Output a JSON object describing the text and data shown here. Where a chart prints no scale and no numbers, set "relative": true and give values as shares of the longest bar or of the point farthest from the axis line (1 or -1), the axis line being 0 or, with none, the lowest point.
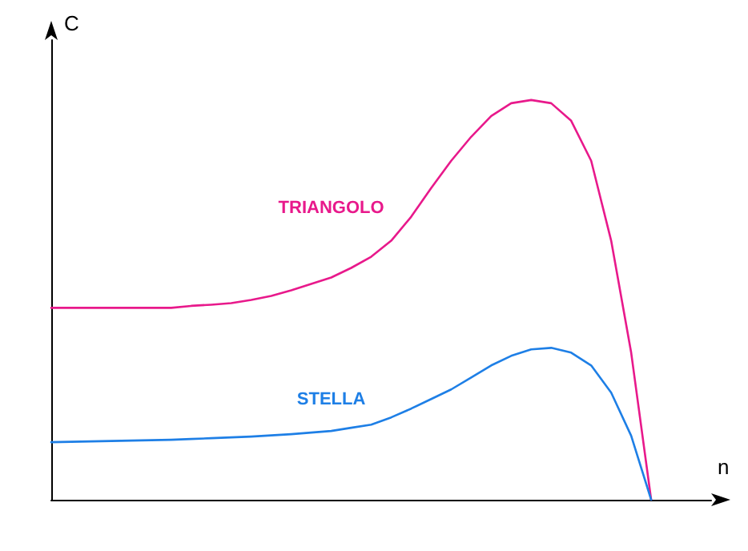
{
  "chart_data": {
    "type": "line",
    "relative": true,
    "xlabel": "n",
    "ylabel": "C",
    "grid": false,
    "legend": false,
    "marker": "none",
    "line_style": "solid",
    "categories": [
      null,
      null,
      null,
      null,
      null,
      null,
      null,
      null,
      null,
      null,
      null,
      null,
      null,
      null,
      null,
      null,
      null,
      null,
      null,
      null,
      null,
      null,
      null,
      null,
      null,
      null,
      null,
      null,
      null,
      null,
      null,
      null,
      null,
      null
    ],
    "series": [
      {
        "name": "TRIANGOLO",
        "color": "#e8198b",
        "values": [
          0.48,
          0.48,
          0.48,
          0.48,
          0.48,
          0.48,
          0.48,
          0.485,
          0.488,
          0.492,
          0.5,
          0.51,
          0.524,
          0.54,
          0.556,
          0.58,
          0.608,
          0.648,
          0.708,
          0.78,
          0.848,
          0.908,
          0.96,
          0.992,
          1,
          0.992,
          0.948,
          0.848,
          0.648,
          0.368,
          0,
          null,
          null,
          null
        ]
      },
      {
        "name": "STELLA",
        "color": "#1e7fe6",
        "values": [
          0.144,
          0.145,
          0.146,
          0.147,
          0.148,
          0.149,
          0.15,
          0.152,
          0.154,
          0.156,
          0.158,
          0.161,
          0.164,
          0.168,
          0.172,
          0.18,
          0.188,
          0.206,
          0.228,
          0.252,
          0.276,
          0.306,
          0.336,
          0.36,
          0.376,
          0.38,
          0.368,
          0.336,
          0.268,
          0.16,
          0,
          null,
          null,
          null
        ]
      }
    ]
  }
}
